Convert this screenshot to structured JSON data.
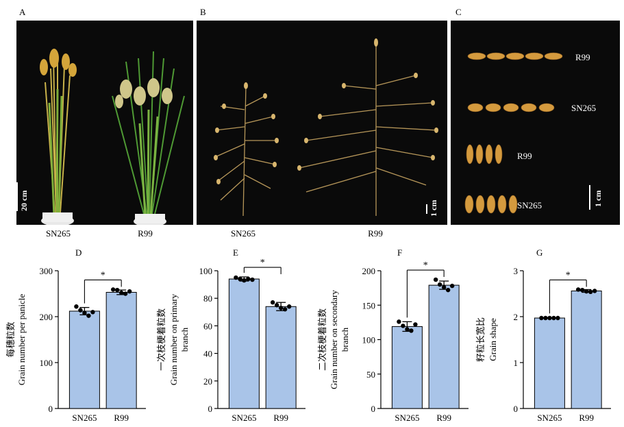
{
  "panels": {
    "A": {
      "letter": "A",
      "labels": [
        "SN265",
        "R99"
      ],
      "scale": "20 cm"
    },
    "B": {
      "letter": "B",
      "labels": [
        "SN265",
        "R99"
      ],
      "scale": "1 cm"
    },
    "C": {
      "letter": "C",
      "labels": [
        "R99",
        "SN265",
        "R99",
        "SN265"
      ],
      "scale": "1 cm"
    }
  },
  "colors": {
    "bar_fill": "#a9c4e8",
    "bar_stroke": "#000000",
    "dot": "#000000",
    "photo_bg": "#0a0a0a"
  },
  "chart_data": [
    {
      "type": "bar",
      "panel": "D",
      "categories": [
        "SN265",
        "R99"
      ],
      "values": [
        212,
        253
      ],
      "errors": [
        8,
        5
      ],
      "points": [
        [
          222,
          214,
          208,
          202,
          210
        ],
        [
          259,
          258,
          252,
          250,
          255
        ]
      ],
      "ylim": [
        0,
        300
      ],
      "yticks": [
        0,
        100,
        200,
        300
      ],
      "ylabel_cn": "每穗粒数",
      "ylabel_en": [
        "Grain number per panicle"
      ],
      "significance": "*"
    },
    {
      "type": "bar",
      "panel": "E",
      "categories": [
        "SN265",
        "R99"
      ],
      "values": [
        94,
        74
      ],
      "errors": [
        1.5,
        3
      ],
      "points": [
        [
          95,
          94,
          93,
          94,
          93.5
        ],
        [
          77,
          75,
          73,
          72,
          74
        ]
      ],
      "ylim": [
        0,
        100
      ],
      "yticks": [
        0,
        20,
        40,
        60,
        80,
        100
      ],
      "ylabel_cn": "一次枝梗着粒数",
      "ylabel_en": [
        "Grain number on primary",
        "branch"
      ],
      "significance": "*"
    },
    {
      "type": "bar",
      "panel": "F",
      "categories": [
        "SN265",
        "R99"
      ],
      "values": [
        119,
        179
      ],
      "errors": [
        7,
        6
      ],
      "points": [
        [
          126,
          120,
          115,
          113,
          122
        ],
        [
          187,
          180,
          176,
          172,
          178
        ]
      ],
      "ylim": [
        0,
        200
      ],
      "yticks": [
        0,
        50,
        100,
        150,
        200
      ],
      "ylabel_cn": "二次枝梗着粒数",
      "ylabel_en": [
        "Grain number on secondary",
        "branch"
      ],
      "significance": "*"
    },
    {
      "type": "bar",
      "panel": "G",
      "categories": [
        "SN265",
        "R99"
      ],
      "values": [
        1.97,
        2.56
      ],
      "errors": [
        0.01,
        0.03
      ],
      "points": [
        [
          1.97,
          1.97,
          1.97,
          1.97,
          1.97
        ],
        [
          2.59,
          2.58,
          2.55,
          2.54,
          2.56
        ]
      ],
      "ylim": [
        0,
        3
      ],
      "yticks": [
        0,
        1,
        2,
        3
      ],
      "ylabel_cn": "籽粒长宽比",
      "ylabel_en": [
        "Grain shape"
      ],
      "significance": "*"
    }
  ]
}
